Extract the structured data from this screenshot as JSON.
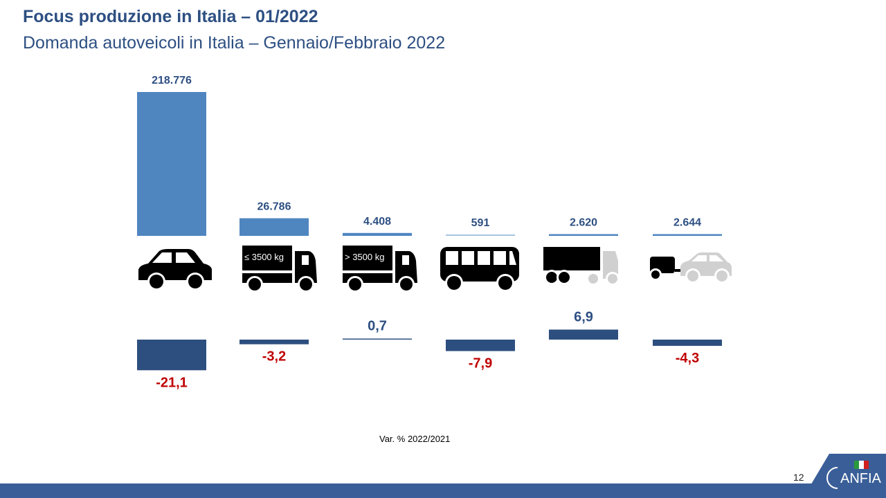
{
  "header": {
    "title": "Focus produzione in Italia – 01/2022",
    "subtitle": "Domanda autoveicoli in Italia – Gennaio/Febbraio 2022"
  },
  "chart_data": {
    "type": "bar",
    "categories": [
      "Autovetture",
      "Veicoli commerciali ≤ 3500 kg",
      "Veicoli industriali > 3500 kg",
      "Autobus",
      "Rimorchi e semirimorchi pesanti",
      "Rimorchi leggeri"
    ],
    "icon_labels": [
      "",
      "≤ 3500 kg",
      "> 3500 kg",
      "",
      "",
      ""
    ],
    "series": [
      {
        "values": [
          218776,
          26786,
          4408,
          591,
          2620,
          2644
        ],
        "labels": [
          "218.776",
          "26.786",
          "4.408",
          "591",
          "2.620",
          "2.644"
        ],
        "color": "#4f86c0"
      },
      {
        "values": [
          -21.1,
          -3.2,
          0.7,
          -7.9,
          6.9,
          -4.3
        ],
        "labels": [
          "-21,1",
          "-3,2",
          "0,7",
          "-7,9",
          "6,9",
          "-4,3"
        ],
        "color": "#2d4f7f"
      }
    ],
    "xlabel": "Var. %  2022/2021",
    "colors": {
      "negative_label": "#c00000",
      "positive_label": "#2d4f82"
    }
  },
  "footer": {
    "page": "12",
    "logo": "ANFIA"
  }
}
